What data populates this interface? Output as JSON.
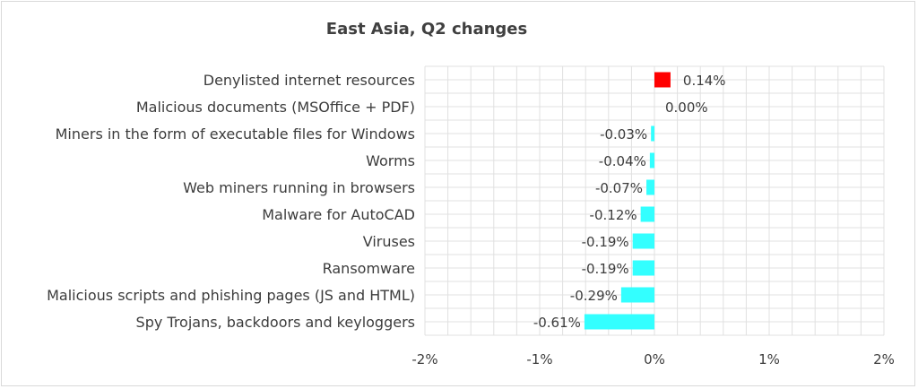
{
  "chart_data": {
    "type": "bar",
    "orientation": "horizontal",
    "title": "East Asia, Q2 changes",
    "categories": [
      "Denylisted internet resources",
      "Malicious documents (MSOffice + PDF)",
      "Miners in the form of executable files for Windows",
      "Worms",
      "Web miners running in browsers",
      "Malware for AutoCAD",
      "Viruses",
      "Ransomware",
      "Malicious scripts and phishing pages (JS and HTML)",
      "Spy Trojans, backdoors and keyloggers"
    ],
    "values": [
      0.14,
      0.0,
      -0.03,
      -0.04,
      -0.07,
      -0.12,
      -0.19,
      -0.19,
      -0.29,
      -0.61
    ],
    "data_labels": [
      "0.14%",
      "0.00%",
      "-0.03%",
      "-0.04%",
      "-0.07%",
      "-0.12%",
      "-0.19%",
      "-0.19%",
      "-0.29%",
      "-0.61%"
    ],
    "xlim": [
      -2,
      2
    ],
    "x_ticks": [
      -2,
      -1,
      0,
      1,
      2
    ],
    "x_tick_labels": [
      "-2%",
      "-1%",
      "0%",
      "1%",
      "2%"
    ],
    "xlabel": "",
    "ylabel": "",
    "grid": true,
    "colors": {
      "positive": "#ff0000",
      "negative": "#33ffff",
      "grid": "#e0e0e0",
      "text": "#3c3c3c",
      "title": "#404040"
    }
  }
}
